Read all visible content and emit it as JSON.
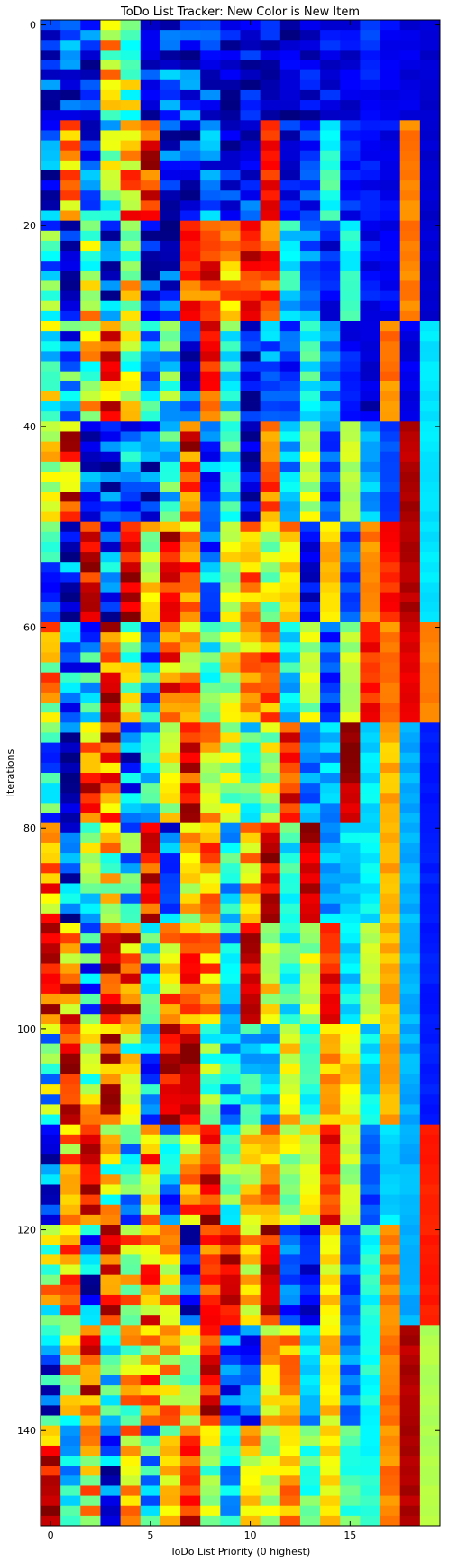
{
  "chart_data": {
    "type": "heatmap",
    "title": "ToDo List Tracker: New Color is New Item",
    "xlabel": "ToDo List Priority (0 highest)",
    "ylabel": "Iterations",
    "xlim": [
      -0.5,
      19.5
    ],
    "ylim": [
      149.5,
      -0.5
    ],
    "x_ticks": [
      0,
      5,
      10,
      15
    ],
    "x_tick_labels": [
      "0",
      "5",
      "10",
      "15"
    ],
    "y_ticks": [
      0,
      20,
      40,
      60,
      80,
      100,
      120,
      140
    ],
    "y_tick_labels": [
      "0",
      "20",
      "40",
      "60",
      "80",
      "100",
      "120",
      "140"
    ],
    "colormap": "jet",
    "n_columns": 20,
    "n_rows": 150,
    "value_range": [
      0,
      1
    ],
    "row_segments": [
      {
        "rows": [
          0,
          9
        ],
        "values": [
          0.05,
          0.1,
          0.12,
          0.6,
          0.55,
          0.05,
          0.18,
          0.15,
          0.12,
          0.1,
          0.08,
          0.08,
          0.1,
          0.1,
          0.12,
          0.12,
          0.15,
          0.12,
          0.1,
          0.08
        ]
      },
      {
        "rows": [
          10,
          19
        ],
        "values": [
          0.1,
          0.8,
          0.2,
          0.45,
          0.7,
          0.85,
          0.12,
          0.15,
          0.2,
          0.1,
          0.15,
          0.85,
          0.12,
          0.15,
          0.4,
          0.15,
          0.12,
          0.12,
          0.75,
          0.08
        ]
      },
      {
        "rows": [
          20,
          29
        ],
        "values": [
          0.35,
          0.2,
          0.55,
          0.15,
          0.6,
          0.1,
          0.12,
          0.85,
          0.8,
          0.7,
          0.85,
          0.8,
          0.35,
          0.25,
          0.12,
          0.4,
          0.12,
          0.12,
          0.75,
          0.08
        ]
      },
      {
        "rows": [
          30,
          39
        ],
        "values": [
          0.45,
          0.3,
          0.55,
          0.8,
          0.5,
          0.35,
          0.4,
          0.12,
          0.85,
          0.4,
          0.1,
          0.25,
          0.2,
          0.4,
          0.25,
          0.12,
          0.08,
          0.75,
          0.1,
          0.35
        ]
      },
      {
        "rows": [
          40,
          49
        ],
        "values": [
          0.55,
          0.8,
          0.1,
          0.2,
          0.25,
          0.15,
          0.35,
          0.85,
          0.2,
          0.4,
          0.05,
          0.75,
          0.3,
          0.55,
          0.2,
          0.55,
          0.3,
          0.2,
          0.95,
          0.35
        ]
      },
      {
        "rows": [
          50,
          59
        ],
        "values": [
          0.3,
          0.15,
          0.9,
          0.2,
          0.95,
          0.6,
          0.85,
          0.75,
          0.25,
          0.55,
          0.75,
          0.55,
          0.7,
          0.1,
          0.7,
          0.2,
          0.75,
          0.85,
          0.95,
          0.35
        ]
      },
      {
        "rows": [
          60,
          69
        ],
        "values": [
          0.7,
          0.2,
          0.3,
          0.8,
          0.55,
          0.3,
          0.75,
          0.7,
          0.45,
          0.6,
          0.7,
          0.75,
          0.35,
          0.55,
          0.2,
          0.55,
          0.85,
          0.75,
          0.9,
          0.75
        ]
      },
      {
        "rows": [
          70,
          79
        ],
        "values": [
          0.3,
          0.1,
          0.75,
          0.8,
          0.2,
          0.35,
          0.55,
          0.9,
          0.65,
          0.55,
          0.4,
          0.55,
          0.85,
          0.25,
          0.3,
          0.95,
          0.35,
          0.7,
          0.3,
          0.15
        ]
      },
      {
        "rows": [
          80,
          89
        ],
        "values": [
          0.8,
          0.2,
          0.45,
          0.6,
          0.35,
          0.85,
          0.2,
          0.6,
          0.75,
          0.35,
          0.7,
          0.95,
          0.4,
          0.95,
          0.3,
          0.35,
          0.35,
          0.7,
          0.3,
          0.15
        ]
      },
      {
        "rows": [
          90,
          99
        ],
        "values": [
          0.9,
          0.75,
          0.3,
          0.9,
          0.8,
          0.35,
          0.7,
          0.75,
          0.7,
          0.3,
          0.95,
          0.6,
          0.4,
          0.55,
          0.85,
          0.35,
          0.55,
          0.7,
          0.3,
          0.15
        ]
      },
      {
        "rows": [
          100,
          109
        ],
        "values": [
          0.45,
          0.9,
          0.6,
          0.85,
          0.55,
          0.3,
          0.95,
          0.95,
          0.45,
          0.3,
          0.35,
          0.3,
          0.65,
          0.4,
          0.7,
          0.65,
          0.35,
          0.7,
          0.3,
          0.15
        ]
      },
      {
        "rows": [
          110,
          119
        ],
        "values": [
          0.2,
          0.65,
          0.9,
          0.55,
          0.35,
          0.75,
          0.3,
          0.7,
          0.85,
          0.45,
          0.65,
          0.75,
          0.55,
          0.6,
          0.85,
          0.55,
          0.2,
          0.35,
          0.3,
          0.85
        ]
      },
      {
        "rows": [
          120,
          129
        ],
        "values": [
          0.55,
          0.75,
          0.2,
          0.9,
          0.65,
          0.75,
          0.65,
          0.1,
          0.75,
          0.85,
          0.65,
          0.9,
          0.2,
          0.1,
          0.65,
          0.2,
          0.4,
          0.75,
          0.3,
          0.85
        ]
      },
      {
        "rows": [
          130,
          139
        ],
        "values": [
          0.25,
          0.6,
          0.85,
          0.35,
          0.6,
          0.7,
          0.65,
          0.55,
          0.85,
          0.2,
          0.2,
          0.65,
          0.7,
          0.3,
          0.65,
          0.25,
          0.4,
          0.75,
          0.95,
          0.55
        ]
      },
      {
        "rows": [
          140,
          149
        ],
        "values": [
          0.85,
          0.35,
          0.65,
          0.2,
          0.7,
          0.35,
          0.6,
          0.9,
          0.55,
          0.3,
          0.65,
          0.55,
          0.7,
          0.45,
          0.65,
          0.45,
          0.4,
          0.75,
          0.95,
          0.55
        ]
      }
    ],
    "row_noise": 0.25
  }
}
